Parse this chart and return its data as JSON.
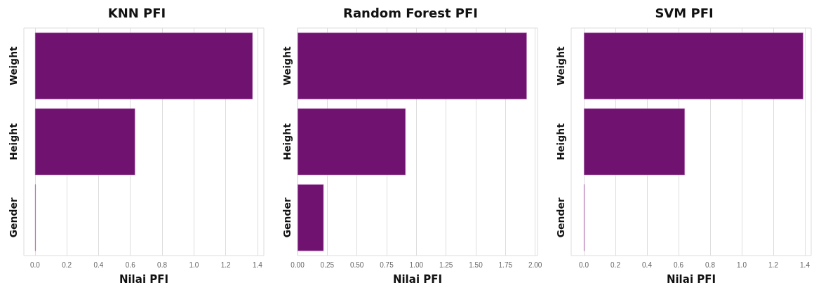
{
  "chart_data": [
    {
      "type": "bar",
      "orientation": "horizontal",
      "title": "KNN PFI",
      "xlabel": "Nilai PFI",
      "categories": [
        "Weight",
        "Height",
        "Gender"
      ],
      "values": [
        1.37,
        0.63,
        0.005
      ],
      "color": "#701370",
      "xlim": [
        -0.07,
        1.44
      ],
      "xticks": [
        {
          "value": 0,
          "label": "0.0"
        },
        0.2,
        0.4,
        0.6,
        0.8,
        {
          "value": 1,
          "label": "1.0"
        },
        1.2,
        1.4
      ],
      "grid": "x"
    },
    {
      "type": "bar",
      "orientation": "horizontal",
      "title": "Random Forest PFI",
      "xlabel": "Nilai PFI",
      "categories": [
        "Weight",
        "Height",
        "Gender"
      ],
      "values": [
        1.93,
        0.91,
        0.22
      ],
      "color": "#701370",
      "xlim": [
        0,
        2.02
      ],
      "xticks": [
        {
          "value": 0,
          "label": "0.00"
        },
        0.25,
        {
          "value": 0.5,
          "label": "0.50"
        },
        0.75,
        {
          "value": 1,
          "label": "1.00"
        },
        1.25,
        {
          "value": 1.5,
          "label": "1.50"
        },
        1.75,
        {
          "value": 2,
          "label": "2.00"
        }
      ],
      "grid": "x"
    },
    {
      "type": "bar",
      "orientation": "horizontal",
      "title": "SVM PFI",
      "xlabel": "Nilai PFI",
      "categories": [
        "Weight",
        "Height",
        "Gender"
      ],
      "values": [
        1.39,
        0.64,
        0.005
      ],
      "color": "#701370",
      "xlim": [
        -0.08,
        1.44
      ],
      "xticks": [
        {
          "value": 0,
          "label": "0.0"
        },
        0.2,
        0.4,
        0.6,
        0.8,
        {
          "value": 1,
          "label": "1.0"
        },
        1.2,
        1.4
      ],
      "grid": "x"
    }
  ]
}
